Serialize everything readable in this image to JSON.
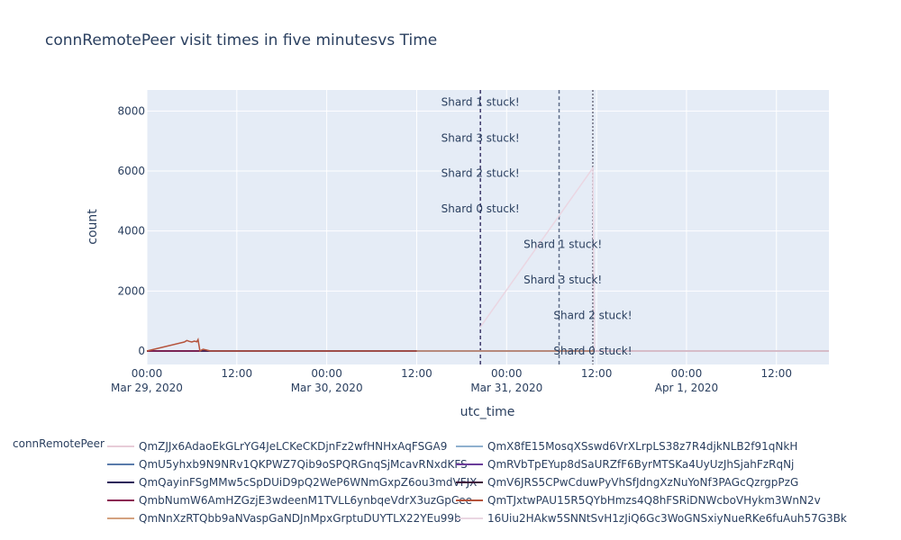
{
  "chart_data": {
    "type": "line",
    "title": "connRemotePeer visit times in five minutesvs Time",
    "xlabel": "utc_time",
    "ylabel": "count",
    "xlim": [
      "2020-03-29 00:00",
      "2020-04-01 19:00"
    ],
    "ylim": [
      -450,
      8700
    ],
    "x_ticks": [
      {
        "t": "2020-03-29 00:00",
        "label": "00:00",
        "sub": "Mar 29, 2020"
      },
      {
        "t": "2020-03-29 12:00",
        "label": "12:00",
        "sub": ""
      },
      {
        "t": "2020-03-30 00:00",
        "label": "00:00",
        "sub": "Mar 30, 2020"
      },
      {
        "t": "2020-03-30 12:00",
        "label": "12:00",
        "sub": ""
      },
      {
        "t": "2020-03-31 00:00",
        "label": "00:00",
        "sub": "Mar 31, 2020"
      },
      {
        "t": "2020-03-31 12:00",
        "label": "12:00",
        "sub": ""
      },
      {
        "t": "2020-04-01 00:00",
        "label": "00:00",
        "sub": "Apr 1, 2020"
      },
      {
        "t": "2020-04-01 12:00",
        "label": "12:00",
        "sub": ""
      }
    ],
    "y_ticks": [
      0,
      2000,
      4000,
      6000,
      8000
    ],
    "grid": true,
    "legend": {
      "title": "connRemotePeer",
      "position": "bottom"
    },
    "series": [
      {
        "name": "QmZJJx6AdaoEkGLrYG4JeLCKeCKDjnFz2wfHNHxAqFSGA9",
        "color": "#e8ccd8",
        "x": [
          "2020-03-29 00:00",
          "2020-03-31 12:00"
        ],
        "y": [
          0,
          0
        ]
      },
      {
        "name": "QmX8fE15MosqXSswd6VrXLrpLS38z7R4djkNLB2f91qNkH",
        "color": "#8fb1cf",
        "x": [
          "2020-03-29 00:00",
          "2020-04-01 19:00"
        ],
        "y": [
          0,
          0
        ]
      },
      {
        "name": "QmU5yhxb9N9NRv1QKPWZ7Qib9oSPQRGnqSjMcavRNxdKFS",
        "color": "#5a7bab",
        "x": [
          "2020-03-29 00:00",
          "2020-04-01 19:00"
        ],
        "y": [
          0,
          0
        ]
      },
      {
        "name": "QmRVbTpEYup8dSaURZfF6ByrMTSKa4UyUzJhSjahFzRqNj",
        "color": "#6a3d9a",
        "x": [
          "2020-03-29 00:00",
          "2020-04-01 19:00"
        ],
        "y": [
          0,
          0
        ]
      },
      {
        "name": "QmQayinFSgMMw5cSpDUiD9pQ2WeP6WNmGxpZ6ou3mdVFJX",
        "color": "#2d1e5a",
        "x": [
          "2020-03-29 00:00",
          "2020-03-29 07:00"
        ],
        "y": [
          0,
          0
        ]
      },
      {
        "name": "QmV6JRS5CPwCduwPyVhSfJdngXzNuYoNf3PAGcQzrgpPzG",
        "color": "#3d0f3a",
        "x": [
          "2020-03-29 00:00",
          "2020-04-01 19:00"
        ],
        "y": [
          0,
          0
        ]
      },
      {
        "name": "QmbNumW6AmHZGzjE3wdeenM1TVLL6ynbqeVdrX3uzGpCee",
        "color": "#8b2252",
        "x": [
          "2020-03-29 00:00",
          "2020-03-29 07:00"
        ],
        "y": [
          0,
          0
        ]
      },
      {
        "name": "QmTJxtwPAU15R5QYbHmzs4Q8hFSRiDNWcboVHykm3WnN2v",
        "color": "#b5533c",
        "x": [
          "2020-03-29 00:00",
          "2020-03-29 05:00",
          "2020-03-29 05:20",
          "2020-03-29 05:40",
          "2020-03-29 06:00",
          "2020-03-29 06:20",
          "2020-03-29 06:40",
          "2020-03-29 06:50",
          "2020-03-29 07:05",
          "2020-03-29 07:30",
          "2020-03-29 08:30",
          "2020-03-30 12:00"
        ],
        "y": [
          0,
          300,
          350,
          320,
          300,
          330,
          310,
          380,
          0,
          60,
          0,
          0
        ]
      },
      {
        "name": "QmNnXzRTQbb9aNVaspGaNDJnMpxGrptuDUYTLX22YEu99b",
        "color": "#d4a27f",
        "x": [
          "2020-03-30 12:00",
          "2020-04-01 19:00"
        ],
        "y": [
          0,
          0
        ]
      },
      {
        "name": "16Uiu2HAkw5SNNtSvH1zJiQ6Gc3WoGNSxiyNueRKe6fuAuh57G3Bk",
        "color": "#ead6e2",
        "x": [
          "2020-03-30 20:30",
          "2020-03-31 11:30",
          "2020-03-31 11:45",
          "2020-04-01 19:00"
        ],
        "y": [
          800,
          6100,
          0,
          0
        ]
      }
    ],
    "annotations": [
      {
        "text": "Shard 1 stuck!",
        "x": "2020-03-31 07:30",
        "y": 3560
      },
      {
        "text": "Shard 3 stuck!",
        "x": "2020-03-31 07:30",
        "y": 2370
      },
      {
        "text": "Shard 2 stuck!",
        "x": "2020-03-31 11:30",
        "y": 1180
      },
      {
        "text": "Shard 0 stuck!",
        "x": "2020-03-31 11:30",
        "y": 0
      },
      {
        "text": "Shard 1 stuck!",
        "x": "2020-03-30 20:30",
        "y": 8300
      },
      {
        "text": "Shard 3 stuck!",
        "x": "2020-03-30 20:30",
        "y": 7100
      },
      {
        "text": "Shard 2 stuck!",
        "x": "2020-03-30 20:30",
        "y": 5920
      },
      {
        "text": "Shard 0 stuck!",
        "x": "2020-03-30 20:30",
        "y": 4740
      }
    ],
    "vlines": [
      {
        "x": "2020-03-30 20:30",
        "style": "dash",
        "color": "#3f3a6b"
      },
      {
        "x": "2020-03-31 07:00",
        "style": "dash",
        "color": "#5d6b87"
      },
      {
        "x": "2020-03-31 11:30",
        "style": "dot",
        "color": "#6e6e80"
      }
    ]
  }
}
